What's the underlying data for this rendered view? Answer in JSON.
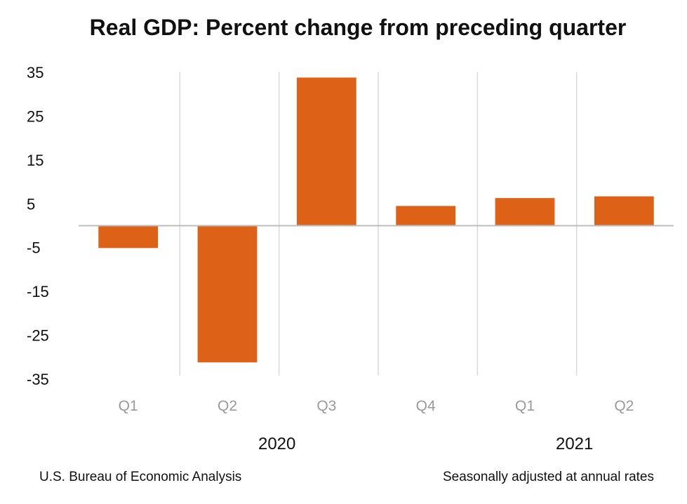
{
  "chart_data": {
    "type": "bar",
    "title": "Real GDP:  Percent change from preceding quarter",
    "categories": [
      "Q1",
      "Q2",
      "Q3",
      "Q4",
      "Q1",
      "Q2"
    ],
    "year_groups": [
      {
        "label": "2020",
        "categories": [
          "Q1",
          "Q2",
          "Q3",
          "Q4"
        ]
      },
      {
        "label": "2021",
        "categories": [
          "Q1",
          "Q2"
        ]
      }
    ],
    "series": [
      {
        "values": [
          -5.1,
          -31.2,
          33.8,
          4.5,
          6.3,
          6.7
        ]
      }
    ],
    "yticks": [
      "35",
      "25",
      "15",
      "5",
      "-5",
      "-15",
      "-25",
      "-35"
    ],
    "ylim": [
      -35,
      35
    ],
    "grid": "vertical",
    "bar_color": "#dd6218",
    "source": "U.S. Bureau of Economic Analysis",
    "note": "Seasonally adjusted at annual rates"
  }
}
